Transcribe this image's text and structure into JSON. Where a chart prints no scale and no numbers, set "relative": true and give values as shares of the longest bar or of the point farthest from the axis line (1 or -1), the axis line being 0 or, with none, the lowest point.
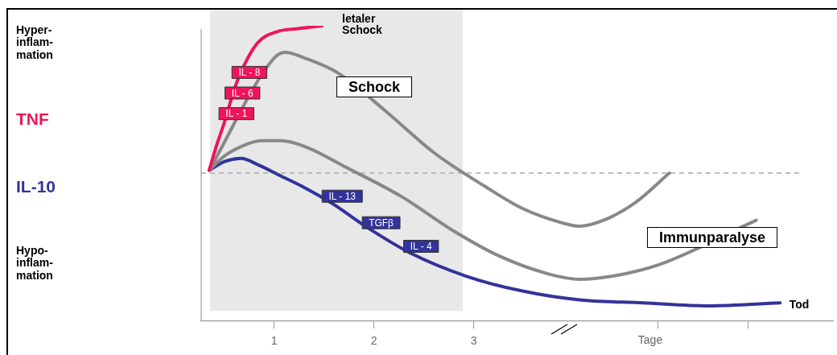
{
  "chart_data": {
    "type": "line",
    "relative": true,
    "xlabel": "Tage",
    "xlim": [
      0.27,
      6.6
    ],
    "xticks": [
      1,
      2,
      3,
      {
        "value": 4.85,
        "label": null
      },
      {
        "value": 5.75,
        "label": null
      }
    ],
    "legend": false,
    "grid": false,
    "marker": "none",
    "line_style": "solid",
    "series": [
      {
        "name": "TNF",
        "color": "#f0145a",
        "x": [
          0.35,
          0.43,
          0.51,
          0.57,
          0.64,
          0.83,
          1.03,
          1.23,
          1.48
        ],
        "values": [
          0.51,
          0.6,
          0.68,
          0.75,
          0.82,
          0.94,
          0.98,
          0.99,
          1.0
        ]
      },
      {
        "color": "#888888",
        "x": [
          0.35,
          1.0,
          1.11,
          1.31,
          1.64,
          2.12,
          2.6,
          3.09,
          3.49,
          3.9,
          4.06,
          4.3,
          4.62,
          4.96
        ],
        "values": [
          0.51,
          0.89,
          0.91,
          0.89,
          0.84,
          0.71,
          0.57,
          0.46,
          0.38,
          0.33,
          0.32,
          0.34,
          0.4,
          0.5
        ]
      },
      {
        "color": "#888888",
        "x": [
          0.35,
          0.51,
          0.67,
          0.87,
          1.07,
          1.31,
          1.72,
          2.28,
          2.77,
          3.25,
          3.73,
          4.06,
          4.38,
          4.86,
          5.83
        ],
        "values": [
          0.51,
          0.56,
          0.59,
          0.61,
          0.61,
          0.59,
          0.52,
          0.42,
          0.31,
          0.22,
          0.16,
          0.14,
          0.15,
          0.19,
          0.34
        ]
      },
      {
        "name": "IL-10",
        "color": "#33339a",
        "x": [
          0.35,
          0.51,
          0.67,
          0.83,
          1.07,
          1.31,
          1.57,
          1.96,
          2.36,
          2.93,
          3.49,
          4.06,
          4.7,
          5.35,
          6.07
        ],
        "values": [
          0.51,
          0.54,
          0.55,
          0.53,
          0.49,
          0.45,
          0.4,
          0.31,
          0.23,
          0.15,
          0.1,
          0.07,
          0.06,
          0.05,
          0.06
        ]
      }
    ],
    "ref_lines": [
      {
        "axis": "y",
        "value": 0.5,
        "color": "#aaaaaa",
        "line_style": "dashed"
      }
    ],
    "bands": [
      {
        "axis": "x",
        "from": 0.36,
        "to": 2.89,
        "color": "#e8e8e8"
      }
    ],
    "annotations": [
      "Hyper-\ninflam-\nmation",
      "Hypo-\ninflam-\nmation",
      "letaler\nSchock",
      "Schock",
      "Immunparalyse",
      "Tod",
      {
        "text": "IL - 1",
        "x": 0.51,
        "y": 0.68
      },
      {
        "text": "IL - 6",
        "x": 0.57,
        "y": 0.75
      },
      {
        "text": "IL - 8",
        "x": 0.64,
        "y": 0.82
      },
      {
        "text": "IL - 13",
        "x": 1.57,
        "y": 0.4
      },
      {
        "text": "TGFβ",
        "x": 1.96,
        "y": 0.31
      },
      {
        "text": "IL - 4",
        "x": 2.36,
        "y": 0.23
      }
    ]
  }
}
